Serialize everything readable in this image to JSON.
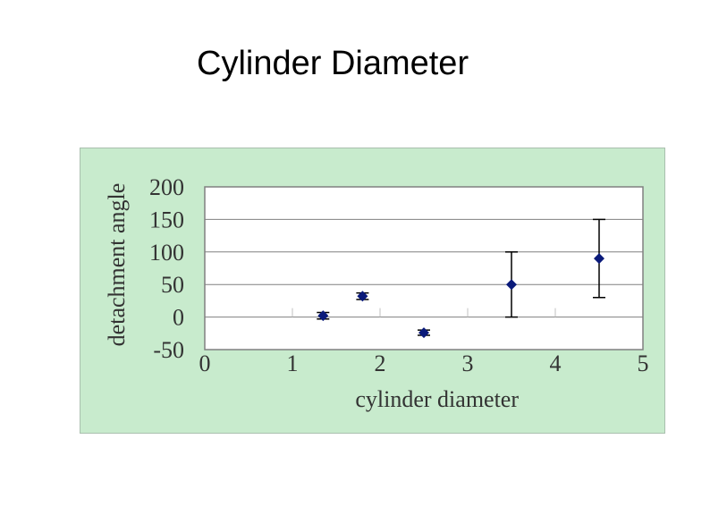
{
  "slide": {
    "title": "Cylinder Diameter"
  },
  "colors": {
    "panel": "#c8ebcd",
    "plot_area": "#ffffff",
    "gridline": "#808080",
    "marker": "#0a1a7a",
    "error_bar": "#000000"
  },
  "chart_data": {
    "type": "scatter",
    "title": "",
    "xlabel": "cylinder diameter",
    "ylabel": "detachment angle",
    "xlim": [
      0,
      5
    ],
    "ylim": [
      -50,
      200
    ],
    "xticks": [
      "0",
      "1",
      "2",
      "3",
      "4",
      "5"
    ],
    "yticks": [
      "200",
      "150",
      "100",
      "50",
      "0",
      "-50"
    ],
    "grid": true,
    "legend": "none",
    "series": [
      {
        "marker": "diamond",
        "points": [
          {
            "x": 1.35,
            "y": 2,
            "err": 5
          },
          {
            "x": 1.8,
            "y": 32,
            "err": 5
          },
          {
            "x": 2.5,
            "y": -24,
            "err": 4
          },
          {
            "x": 3.5,
            "y": 50,
            "err": 50
          },
          {
            "x": 4.5,
            "y": 90,
            "err": 60
          }
        ]
      }
    ]
  }
}
